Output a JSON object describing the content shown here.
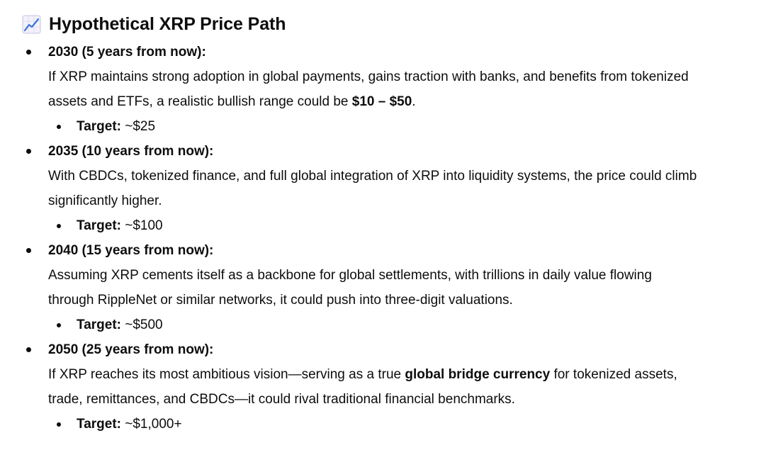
{
  "heading": {
    "icon": "chart-increasing-icon",
    "title": "Hypothetical XRP Price Path"
  },
  "items": [
    {
      "year": "2030 (5 years from now):",
      "body_pre": "If XRP maintains strong adoption in global payments, gains traction with banks, and benefits from tokenized assets and ETFs, a realistic bullish range could be ",
      "body_bold": "$10 – $50",
      "body_post": ".",
      "target_label": "Target:",
      "target_value": " ~$25"
    },
    {
      "year": "2035 (10 years from now):",
      "body_pre": "With CBDCs, tokenized finance, and full global integration of XRP into liquidity systems, the price could climb significantly higher.",
      "body_bold": "",
      "body_post": "",
      "target_label": "Target:",
      "target_value": " ~$100"
    },
    {
      "year": "2040 (15 years from now):",
      "body_pre": "Assuming XRP cements itself as a backbone for global settlements, with trillions in daily value flowing through RippleNet or similar networks, it could push into three-digit valuations.",
      "body_bold": "",
      "body_post": "",
      "target_label": "Target:",
      "target_value": " ~$500"
    },
    {
      "year": "2050 (25 years from now):",
      "body_pre": "If XRP reaches its most ambitious vision—serving as a true ",
      "body_bold": "global bridge currency",
      "body_post": " for tokenized assets, trade, remittances, and CBDCs—it could rival traditional financial benchmarks.",
      "target_label": "Target:",
      "target_value": " ~$1,000+"
    }
  ]
}
